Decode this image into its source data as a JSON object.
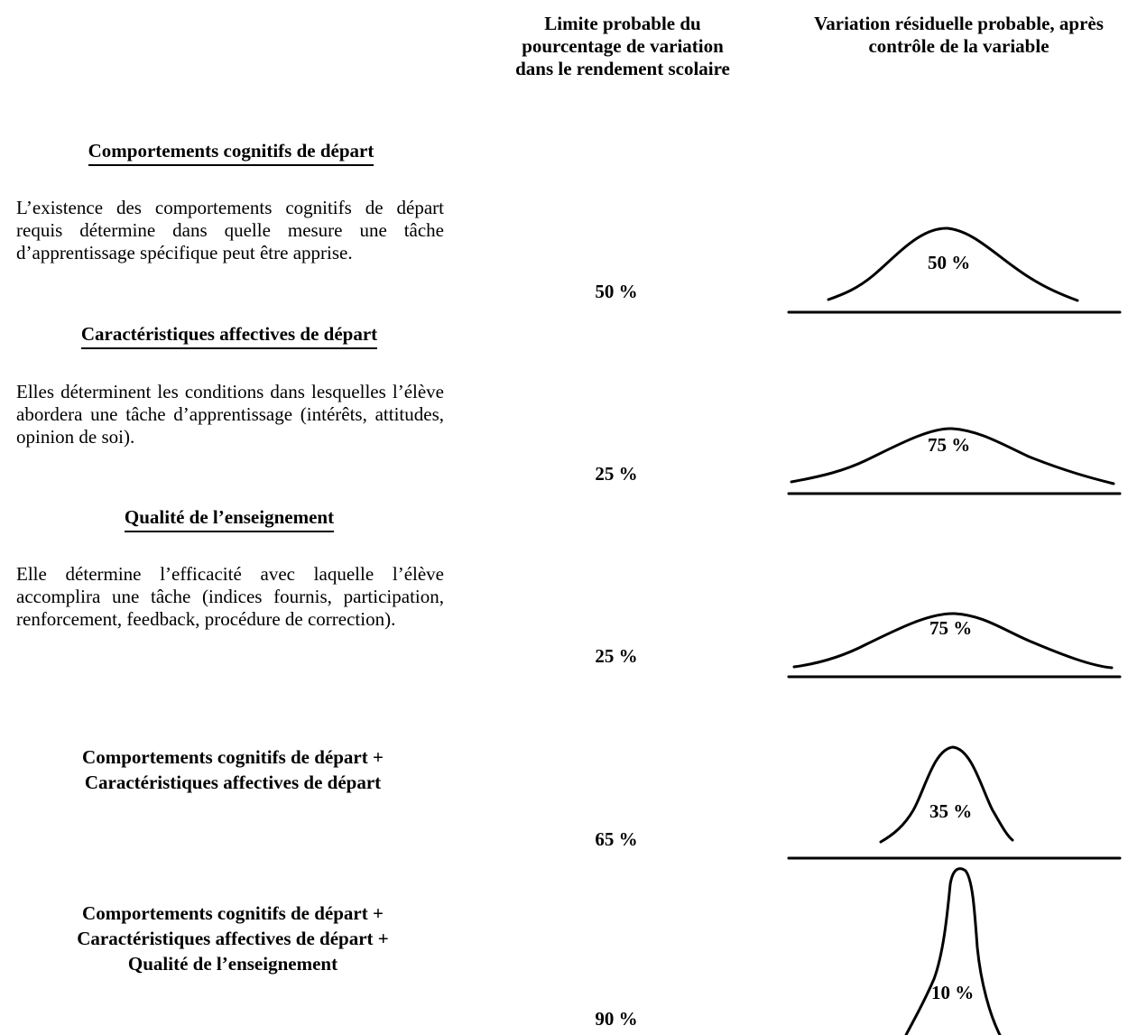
{
  "columns": {
    "limit_header": "Limite probable du pourcentage de variation dans le rendement scolaire",
    "residual_header": "Variation résiduelle probable, après contrôle de la variable"
  },
  "rows": [
    {
      "heading": "Comportements cognitifs de départ",
      "description": "L’existence des comportements cognitifs de départ requis détermine dans quelle mesure une tâche d’apprentissage spécifique peut être apprise.",
      "limit": "50 %",
      "residual_label": "50 %"
    },
    {
      "heading": "Caractéristiques affectives de départ",
      "description": "Elles déterminent les conditions dans lesquelles l’élève abordera une tâche d’apprentissage (intérêts, attitudes, opinion de soi).",
      "limit": "25 %",
      "residual_label": "75 %"
    },
    {
      "heading": "Qualité de l’enseignement",
      "description": "Elle détermine l’efficacité avec laquelle l’élève accomplira une tâche (indices fournis, participation, renforcement, feedback, procédure de correction).",
      "limit": "25 %",
      "residual_label": "75 %"
    },
    {
      "combo_lines": [
        "Comportements cognitifs de départ +",
        "Caractéristiques affectives de départ"
      ],
      "limit": "65 %",
      "residual_label": "35 %"
    },
    {
      "combo_lines": [
        "Comportements cognitifs de départ +",
        "Caractéristiques affectives de départ +",
        "Qualité de l’enseignement"
      ],
      "limit": "90 %",
      "residual_label": "10 %"
    }
  ]
}
